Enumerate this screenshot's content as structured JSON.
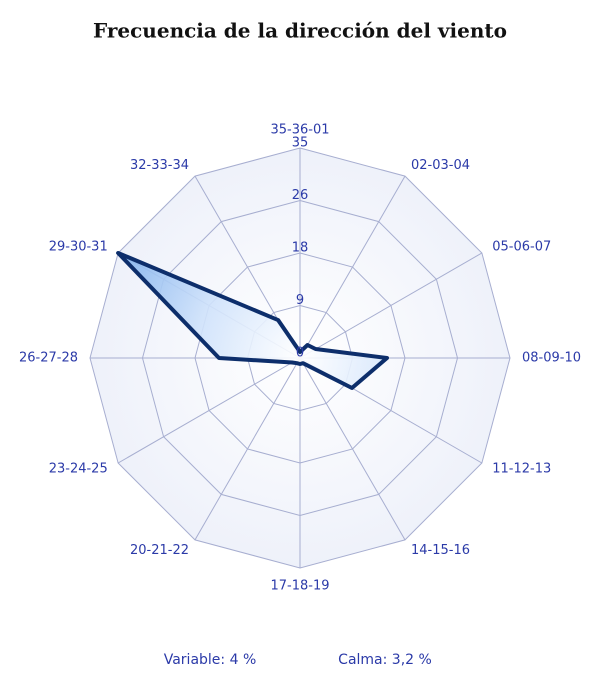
{
  "chart_data": {
    "type": "radar",
    "title": "Frecuencia de la dirección del viento",
    "categories": [
      "35-36-01",
      "02-03-04",
      "05-06-07",
      "08-09-10",
      "11-12-13",
      "14-15-16",
      "17-18-19",
      "20-21-22",
      "23-24-25",
      "26-27-28",
      "29-30-31",
      "32-33-34"
    ],
    "values": [
      1,
      2.5,
      3,
      14.5,
      10,
      1,
      1,
      1,
      1.5,
      13.5,
      35,
      7.3
    ],
    "color": "#0d2e6b",
    "ylim": [
      0,
      35
    ],
    "yticks": [
      0,
      {
        "value": 8.75,
        "label": "9"
      },
      {
        "value": 17.5,
        "label": "18"
      },
      {
        "value": 26.25,
        "label": "26"
      },
      35
    ],
    "grid": true,
    "annotations": [
      "Variable: 4 %",
      "Calma: 3,2 %"
    ]
  }
}
